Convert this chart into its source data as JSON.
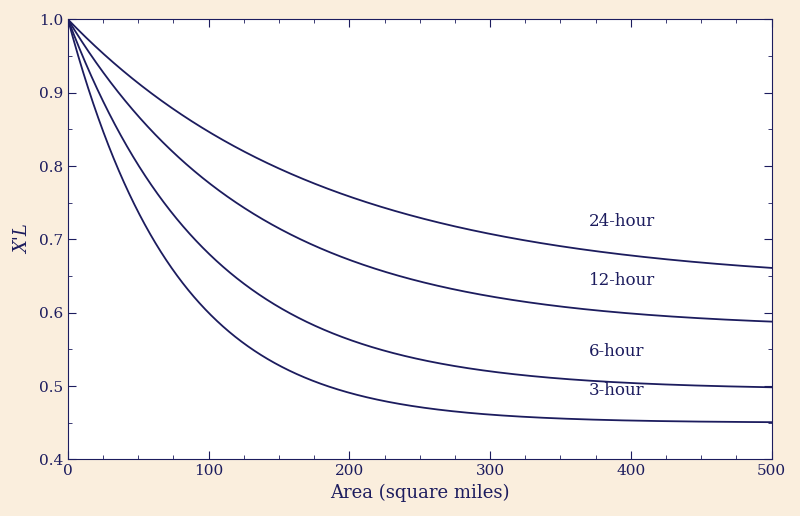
{
  "background_color": "#faeedd",
  "plot_bg_color": "#ffffff",
  "line_color": "#1c1c5e",
  "xlabel": "Area (square miles)",
  "ylabel": "X'L",
  "xlim": [
    0,
    500
  ],
  "ylim": [
    0.4,
    1.0
  ],
  "xticks": [
    0,
    100,
    200,
    300,
    400,
    500
  ],
  "yticks": [
    0.4,
    0.5,
    0.6,
    0.7,
    0.8,
    0.9,
    1.0
  ],
  "curves": [
    {
      "label": "24-hour",
      "asymptote": 0.638,
      "decay": 0.0055
    },
    {
      "label": "12-hour",
      "asymptote": 0.578,
      "decay": 0.0075
    },
    {
      "label": "6-hour",
      "asymptote": 0.495,
      "decay": 0.01
    },
    {
      "label": "3-hour",
      "asymptote": 0.45,
      "decay": 0.013
    }
  ],
  "linewidth": 1.3,
  "fontsize_axis_label": 13,
  "fontsize_tick": 11,
  "fontsize_curve_label": 12
}
